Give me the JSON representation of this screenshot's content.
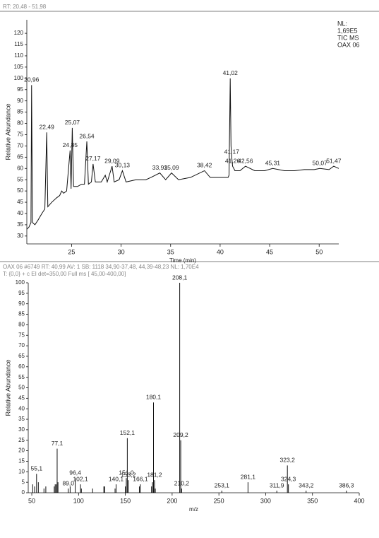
{
  "chart_data": [
    {
      "type": "line",
      "header": "RT: 20,48 - 51,98",
      "notes": [
        "NL:",
        "1,69E5",
        "TIC MS",
        "OAX 06"
      ],
      "x_label": "Time (min)",
      "y_label": "Relative Abundance",
      "xlim": [
        20.48,
        51.98
      ],
      "ylim": [
        26.5,
        126
      ],
      "xticks": [
        25,
        30,
        35,
        40,
        45,
        50
      ],
      "yticks": [
        30,
        35,
        40,
        45,
        50,
        55,
        60,
        65,
        70,
        75,
        80,
        85,
        90,
        95,
        100,
        105,
        110,
        115,
        120
      ],
      "x": [
        20.48,
        20.7,
        20.9,
        20.96,
        21.05,
        21.3,
        21.6,
        22.0,
        22.3,
        22.49,
        22.6,
        23.0,
        23.5,
        23.8,
        24.0,
        24.2,
        24.5,
        24.85,
        24.95,
        25.07,
        25.2,
        25.6,
        26.0,
        26.3,
        26.54,
        26.7,
        27.0,
        27.17,
        27.4,
        28.0,
        28.4,
        28.6,
        29.09,
        29.3,
        29.8,
        30.13,
        30.5,
        31.5,
        32.5,
        33.0,
        33.91,
        34.5,
        35.09,
        35.8,
        37.0,
        38.42,
        39.0,
        40.0,
        40.8,
        40.9,
        41.02,
        41.1,
        41.17,
        41.26,
        41.5,
        42.0,
        42.56,
        43.5,
        44.5,
        45.31,
        46.5,
        47.5,
        48.5,
        49.5,
        50.07,
        51.0,
        51.47,
        51.98
      ],
      "series": [
        {
          "name": "TIC MS",
          "color": "#111111",
          "values": [
            33,
            34,
            36,
            97,
            36,
            35,
            37,
            40,
            42,
            76,
            43,
            45,
            47,
            48,
            50,
            49,
            50,
            68,
            51,
            78,
            52,
            52,
            53,
            53,
            72,
            53,
            54,
            62,
            54,
            54,
            57,
            54,
            61,
            54,
            55,
            59,
            54,
            55,
            55,
            56,
            58,
            55,
            58,
            55,
            56,
            59,
            56,
            56,
            56,
            57,
            100,
            70,
            65,
            61,
            59,
            59,
            61,
            59,
            59,
            60,
            59,
            59,
            59.5,
            59.5,
            60,
            59.5,
            61,
            60
          ]
        }
      ],
      "peaks": [
        {
          "x": 20.96,
          "label": "20,96"
        },
        {
          "x": 22.49,
          "label": "22,49"
        },
        {
          "x": 24.85,
          "label": "24,85"
        },
        {
          "x": 25.07,
          "label": "25,07"
        },
        {
          "x": 26.54,
          "label": "26,54"
        },
        {
          "x": 27.17,
          "label": "27,17"
        },
        {
          "x": 29.09,
          "label": "29,09"
        },
        {
          "x": 30.13,
          "label": "30,13"
        },
        {
          "x": 33.91,
          "label": "33,91"
        },
        {
          "x": 35.09,
          "label": "35,09"
        },
        {
          "x": 38.42,
          "label": "38,42"
        },
        {
          "x": 41.02,
          "label": "41,02"
        },
        {
          "x": 41.17,
          "label": "41,17"
        },
        {
          "x": 41.26,
          "label": "41,26"
        },
        {
          "x": 42.56,
          "label": "42,56"
        },
        {
          "x": 45.31,
          "label": "45,31"
        },
        {
          "x": 50.07,
          "label": "50,07"
        },
        {
          "x": 51.47,
          "label": "51,47"
        }
      ]
    },
    {
      "type": "stick",
      "header": "OAX 06 #6749  RT: 40,99  AV: 1  SB: 1118 34,90-37,48, 44,39-48,23  NL: 1,70E4",
      "subheader": "T: {0,0} + c EI det=350,00 Full ms [ 45,00-400,00]",
      "x_label": "m/z",
      "y_label": "Relative Abundance",
      "xlim": [
        46.2,
        400
      ],
      "ylim": [
        0,
        100
      ],
      "xticks": [
        50,
        100,
        150,
        200,
        250,
        300,
        350,
        400
      ],
      "yticks": [
        0,
        5,
        10,
        15,
        20,
        25,
        30,
        35,
        40,
        45,
        50,
        55,
        60,
        65,
        70,
        75,
        80,
        85,
        90,
        95,
        100
      ],
      "color": "#111111",
      "x": [
        51,
        53,
        55.1,
        57,
        63,
        65,
        74,
        75,
        76,
        77.1,
        78,
        89.0,
        91,
        96.4,
        102.1,
        103,
        115,
        127,
        128,
        139,
        140.1,
        150,
        151.0,
        152.1,
        153.2,
        165,
        166.1,
        178,
        179,
        180.1,
        181.2,
        182,
        208.1,
        209.2,
        210.2,
        253.1,
        281.1,
        311.9,
        323.2,
        324.3,
        343.2,
        386.3
      ],
      "values": [
        4,
        3,
        9,
        5,
        2,
        3,
        3,
        4,
        4,
        21,
        5,
        2,
        3,
        7,
        4,
        2,
        2,
        3,
        3,
        2,
        4,
        3,
        7,
        26,
        6,
        3,
        4,
        3,
        5,
        43,
        6,
        2,
        100,
        25,
        2,
        1,
        5,
        1,
        13,
        4,
        1,
        1
      ],
      "peak_labels": [
        null,
        null,
        "55,1",
        null,
        null,
        null,
        null,
        null,
        null,
        "77,1",
        null,
        "89,0",
        null,
        "96,4",
        "102,1",
        null,
        null,
        null,
        null,
        null,
        "140,1",
        null,
        "151,0",
        "152,1",
        "153,2",
        null,
        "166,1",
        null,
        null,
        "180,1",
        "181,2",
        null,
        "208,1",
        "209,2",
        "210,2",
        "253,1",
        "281,1",
        "311,9",
        "323,2",
        "324,3",
        "343,2",
        "386,3"
      ]
    }
  ]
}
